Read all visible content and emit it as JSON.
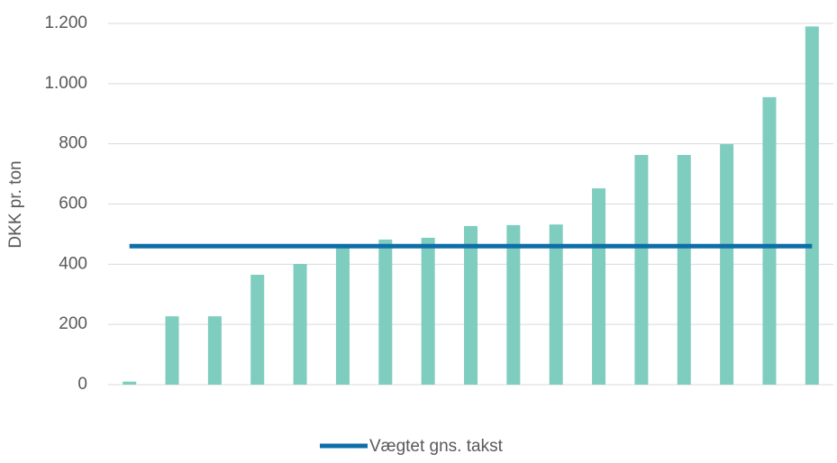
{
  "chart_data": {
    "type": "bar",
    "y_label": "DKK pr. ton",
    "categories": [
      null,
      null,
      null,
      null,
      null,
      null,
      null,
      null,
      null,
      null,
      null,
      null,
      null,
      null,
      null,
      null,
      null
    ],
    "series": [
      {
        "color": "#7fcdbf",
        "values": [
          10,
          227,
          227,
          365,
          401,
          460,
          482,
          488,
          527,
          530,
          532,
          652,
          763,
          763,
          799,
          955,
          1190
        ]
      },
      {
        "name": "Vægtet gns. takst",
        "color": "#0e6fa8",
        "type": "line",
        "values": [
          460,
          460,
          460,
          460,
          460,
          460,
          460,
          460,
          460,
          460,
          460,
          460,
          460,
          460,
          460,
          460,
          460
        ]
      }
    ],
    "ylim": [
      0,
      1200
    ],
    "yticks": [
      0,
      200,
      400,
      600,
      800,
      {
        "value": 1000,
        "label": "1.000"
      },
      {
        "value": 1200,
        "label": "1.200"
      }
    ],
    "grid": true,
    "legend": "bottom"
  }
}
